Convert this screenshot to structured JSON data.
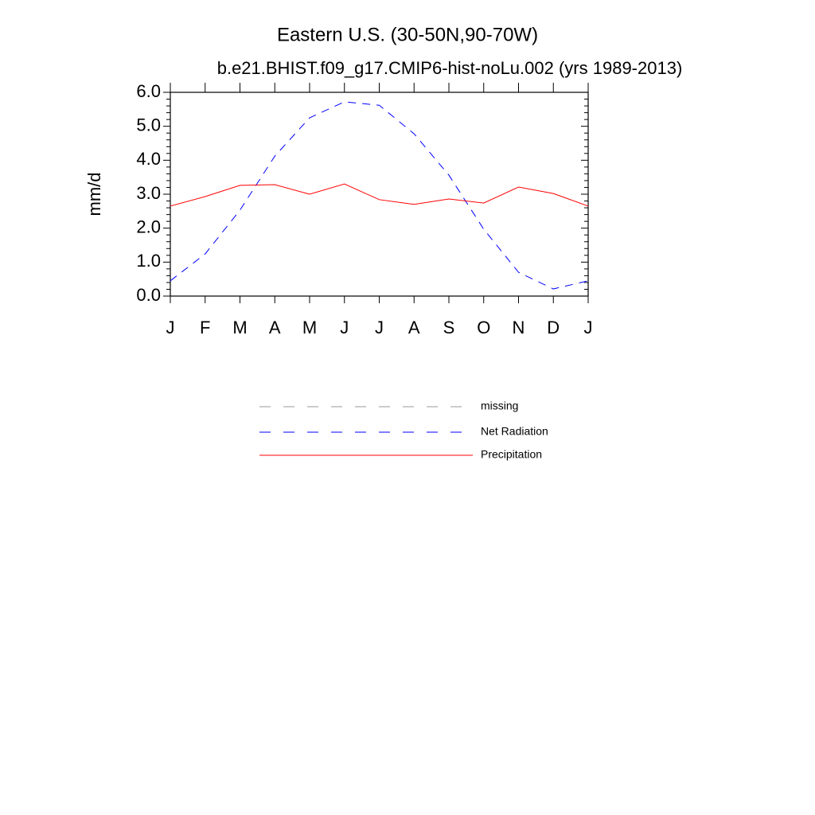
{
  "chart_data": {
    "type": "line",
    "title": "Eastern U.S. (30-50N,90-70W)",
    "subtitle": "b.e21.BHIST.f09_g17.CMIP6-hist-noLu.002 (yrs 1989-2013)",
    "y_label": "mm/d",
    "categories": [
      "J",
      "F",
      "M",
      "A",
      "M",
      "J",
      "J",
      "A",
      "S",
      "O",
      "N",
      "D",
      "J"
    ],
    "ylim": [
      0,
      6
    ],
    "yticks": [
      {
        "value": 0,
        "label": "0.0"
      },
      {
        "value": 1,
        "label": "1.0"
      },
      {
        "value": 2,
        "label": "2.0"
      },
      {
        "value": 3,
        "label": "3.0"
      },
      {
        "value": 4,
        "label": "4.0"
      },
      {
        "value": 5,
        "label": "5.0"
      },
      {
        "value": 6,
        "label": "6.0"
      }
    ],
    "series": [
      {
        "name": "missing",
        "color": "#999999",
        "dashed": true,
        "values": [
          null,
          null,
          null,
          null,
          null,
          null,
          null,
          null,
          null,
          null,
          null,
          null,
          null
        ]
      },
      {
        "name": "Net Radiation",
        "color": "#0000ff",
        "dashed": true,
        "values": [
          0.45,
          1.24,
          2.53,
          4.12,
          5.25,
          5.72,
          5.62,
          4.78,
          3.56,
          1.97,
          0.7,
          0.21,
          0.45
        ]
      },
      {
        "name": "Precipitation",
        "color": "#ff0000",
        "dashed": false,
        "values": [
          2.65,
          2.93,
          3.26,
          3.28,
          3.0,
          3.3,
          2.84,
          2.7,
          2.86,
          2.74,
          3.21,
          3.02,
          2.65
        ]
      }
    ]
  }
}
